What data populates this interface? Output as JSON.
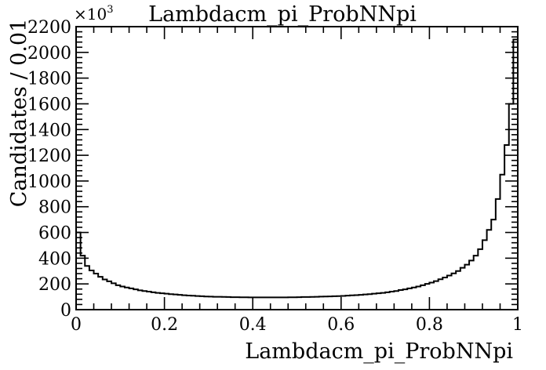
{
  "chart_data": {
    "type": "histogram",
    "title": "Lambdacm_pi_ProbNNpi",
    "xlabel": "Lambdacm_pi_ProbNNpi",
    "ylabel": "Candidates / 0.01",
    "y_multiplier": "×10",
    "y_multiplier_exp": "3",
    "xlim": [
      0,
      1
    ],
    "ylim": [
      0,
      2200
    ],
    "bin_width": 0.01,
    "x_ticks": [
      {
        "value": 0,
        "label": "0"
      },
      {
        "value": 0.2,
        "label": "0.2"
      },
      {
        "value": 0.4,
        "label": "0.4"
      },
      {
        "value": 0.6,
        "label": "0.6"
      },
      {
        "value": 0.8,
        "label": "0.8"
      },
      {
        "value": 1,
        "label": "1"
      }
    ],
    "y_ticks": [
      {
        "value": 0,
        "label": "0"
      },
      {
        "value": 200,
        "label": "200"
      },
      {
        "value": 400,
        "label": "400"
      },
      {
        "value": 600,
        "label": "600"
      },
      {
        "value": 800,
        "label": "800"
      },
      {
        "value": 1000,
        "label": "1000"
      },
      {
        "value": 1200,
        "label": "1200"
      },
      {
        "value": 1400,
        "label": "1400"
      },
      {
        "value": 1600,
        "label": "1600"
      },
      {
        "value": 1800,
        "label": "1800"
      },
      {
        "value": 2000,
        "label": "2000"
      },
      {
        "value": 2200,
        "label": "2200"
      }
    ],
    "values": [
      600,
      420,
      340,
      305,
      280,
      255,
      235,
      220,
      205,
      190,
      180,
      172,
      165,
      158,
      150,
      145,
      140,
      135,
      130,
      127,
      124,
      120,
      118,
      115,
      112,
      110,
      108,
      106,
      104,
      102,
      101,
      100,
      100,
      99,
      98,
      97,
      97,
      96,
      96,
      95,
      95,
      95,
      95,
      95,
      95,
      95,
      95,
      95,
      96,
      96,
      97,
      98,
      98,
      99,
      100,
      101,
      102,
      103,
      104,
      105,
      107,
      109,
      111,
      113,
      115,
      118,
      120,
      124,
      127,
      130,
      135,
      140,
      145,
      152,
      158,
      165,
      172,
      180,
      190,
      200,
      210,
      222,
      236,
      250,
      265,
      282,
      300,
      325,
      350,
      382,
      420,
      470,
      540,
      620,
      700,
      860,
      1050,
      1280,
      1600,
      2100
    ]
  }
}
